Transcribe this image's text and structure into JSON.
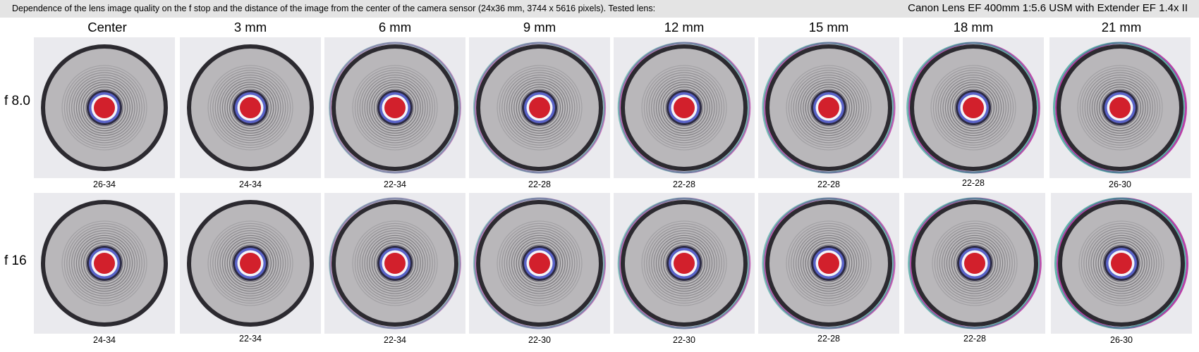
{
  "header": {
    "description": "Dependence of the lens image quality on the f stop and the distance of the image from the center of the camera sensor (24x36 mm, 3744 x 5616 pixels).  Tested lens:",
    "lens": "Canon Lens EF 400mm 1:5.6 USM with Extender EF 1.4x II"
  },
  "columns": [
    "Center",
    "3 mm",
    "6 mm",
    "9 mm",
    "12 mm",
    "15 mm",
    "18 mm",
    "21 mm"
  ],
  "rows": [
    {
      "label": "f 8.0",
      "ratings": [
        "26-34",
        "24-34",
        "22-34",
        "22-28",
        "22-28",
        "22-28",
        "22-28",
        "26-30"
      ]
    },
    {
      "label": "f 16",
      "ratings": [
        "24-34",
        "22-34",
        "22-34",
        "22-30",
        "22-30",
        "22-28",
        "22-28",
        "26-30"
      ]
    }
  ],
  "colors": {
    "header_bg": "#e4e4e4",
    "tile_bg": "#eaeaee",
    "target_disc": "#b9b7ba",
    "target_rim": "#2c2a30",
    "center_dot": "#d2202c",
    "inner_ring": "#5a63c8",
    "fringe_magenta": "#b0209a",
    "fringe_cyan": "#2a9a90"
  }
}
